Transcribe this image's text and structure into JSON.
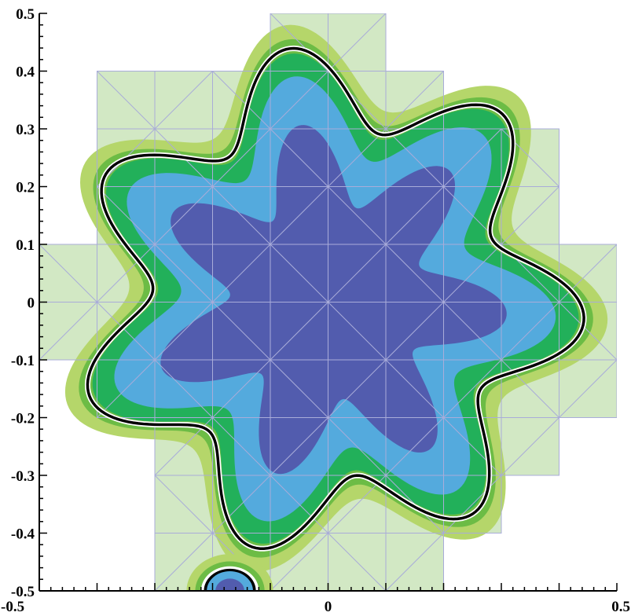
{
  "chart_data": {
    "type": "contour",
    "title": "",
    "xlabel": "",
    "ylabel": "",
    "xlim": [
      -0.5,
      0.5
    ],
    "ylim": [
      -0.5,
      0.5
    ],
    "xticks": [
      {
        "value": -0.5,
        "label": "-0.5"
      },
      {
        "value": 0,
        "label": "0"
      },
      {
        "value": 0.5,
        "label": "0.5"
      }
    ],
    "yticks": [
      {
        "value": 0.5,
        "label": "0.5"
      },
      {
        "value": 0.4,
        "label": "0.4"
      },
      {
        "value": 0.3,
        "label": "0.3"
      },
      {
        "value": 0.2,
        "label": "0.2"
      },
      {
        "value": 0.1,
        "label": "0.1"
      },
      {
        "value": 0,
        "label": "0"
      },
      {
        "value": -0.1,
        "label": "-0.1"
      },
      {
        "value": -0.2,
        "label": "-0.2"
      },
      {
        "value": -0.3,
        "label": "-0.3"
      },
      {
        "value": -0.4,
        "label": "-0.4"
      },
      {
        "value": -0.5,
        "label": "-0.5"
      }
    ],
    "interface_curve": {
      "shape": "seven-lobed star",
      "mean_radius": 0.37,
      "lobe_amplitude": 0.07,
      "lobes": 7,
      "phase": 0.5
    },
    "fill_levels": [
      {
        "name": "level-1",
        "radius_offset": 0.075,
        "color": "#d2e8c4"
      },
      {
        "name": "level-2",
        "radius_offset": 0.045,
        "color": "#b5d66a"
      },
      {
        "name": "level-3",
        "radius_offset": 0.02,
        "color": "#6cbc45"
      },
      {
        "name": "level-4",
        "radius_offset": -0.005,
        "color": "#22b05a"
      },
      {
        "name": "level-5",
        "radius_offset": -0.045,
        "color": "#54aadd"
      },
      {
        "name": "level-6",
        "radius_offset": -0.13,
        "color": "#525cae"
      }
    ],
    "mesh": {
      "spacing": 0.1,
      "cells": [
        [
          -0.1,
          -0.5
        ],
        [
          0.0,
          -0.5
        ],
        [
          0.1,
          -0.5
        ],
        [
          -0.3,
          -0.5
        ],
        [
          -0.2,
          -0.5
        ],
        [
          0.1,
          -0.4
        ],
        [
          0.2,
          -0.4
        ],
        [
          -0.3,
          -0.4
        ],
        [
          -0.2,
          -0.4
        ],
        [
          -0.1,
          -0.4
        ],
        [
          0.0,
          -0.4
        ],
        [
          0.3,
          -0.3
        ],
        [
          -0.3,
          -0.3
        ],
        [
          -0.2,
          -0.3
        ],
        [
          -0.1,
          -0.3
        ],
        [
          0.0,
          -0.3
        ],
        [
          0.1,
          -0.3
        ],
        [
          0.2,
          -0.3
        ],
        [
          -0.4,
          -0.2
        ],
        [
          -0.3,
          -0.2
        ],
        [
          -0.2,
          -0.2
        ],
        [
          -0.1,
          -0.2
        ],
        [
          0.0,
          -0.2
        ],
        [
          0.1,
          -0.2
        ],
        [
          0.2,
          -0.2
        ],
        [
          0.3,
          -0.2
        ],
        [
          0.4,
          -0.2
        ],
        [
          -0.5,
          -0.1
        ],
        [
          -0.4,
          -0.1
        ],
        [
          -0.3,
          -0.1
        ],
        [
          -0.2,
          -0.1
        ],
        [
          -0.1,
          -0.1
        ],
        [
          0.0,
          -0.1
        ],
        [
          0.1,
          -0.1
        ],
        [
          0.2,
          -0.1
        ],
        [
          0.3,
          -0.1
        ],
        [
          0.4,
          -0.1
        ],
        [
          -0.5,
          0.0
        ],
        [
          -0.4,
          0.0
        ],
        [
          -0.3,
          0.0
        ],
        [
          -0.2,
          0.0
        ],
        [
          -0.1,
          0.0
        ],
        [
          0.0,
          0.0
        ],
        [
          0.1,
          0.0
        ],
        [
          0.2,
          0.0
        ],
        [
          0.3,
          0.0
        ],
        [
          0.4,
          0.0
        ],
        [
          -0.4,
          0.1
        ],
        [
          -0.3,
          0.1
        ],
        [
          -0.2,
          0.1
        ],
        [
          -0.1,
          0.1
        ],
        [
          0.0,
          0.1
        ],
        [
          0.1,
          0.1
        ],
        [
          0.2,
          0.1
        ],
        [
          0.3,
          0.1
        ],
        [
          -0.4,
          0.2
        ],
        [
          -0.3,
          0.2
        ],
        [
          -0.2,
          0.2
        ],
        [
          -0.1,
          0.2
        ],
        [
          0.0,
          0.2
        ],
        [
          0.1,
          0.2
        ],
        [
          0.2,
          0.2
        ],
        [
          0.3,
          0.2
        ],
        [
          -0.4,
          0.3
        ],
        [
          -0.3,
          0.3
        ],
        [
          -0.2,
          0.3
        ],
        [
          -0.1,
          0.3
        ],
        [
          0.0,
          0.3
        ],
        [
          0.1,
          0.3
        ],
        [
          -0.1,
          0.4
        ],
        [
          0.0,
          0.4
        ]
      ],
      "line_color": "#a9acd9"
    },
    "corner_feature": {
      "center": [
        -0.18,
        -0.5
      ],
      "note": "partial contour bump at bottom boundary"
    },
    "grid": false,
    "legend": "none"
  }
}
